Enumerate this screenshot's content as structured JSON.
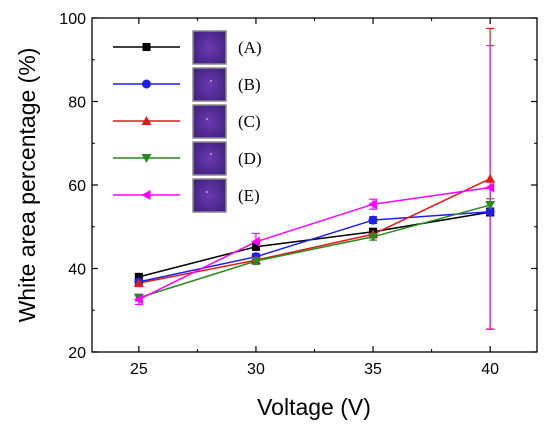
{
  "chart_data": {
    "type": "line",
    "title": "",
    "xlabel": "Voltage (V)",
    "ylabel": "White area percentage (%)",
    "x": [
      25,
      30,
      35,
      40
    ],
    "xlim": [
      23,
      42
    ],
    "ylim": [
      20,
      100
    ],
    "x_ticks": [
      "25",
      "30",
      "35",
      "40"
    ],
    "y_ticks": [
      "20",
      "40",
      "60",
      "80",
      "100"
    ],
    "grid": false,
    "legend_position": "top-left",
    "series": [
      {
        "name": "(A)",
        "color": "#000000",
        "marker": "square",
        "values": [
          38.0,
          45.2,
          48.8,
          53.5
        ],
        "error": [
          0.5,
          0.8,
          0.8,
          0.9
        ]
      },
      {
        "name": "(B)",
        "color": "#1f1fe6",
        "marker": "circle",
        "values": [
          36.8,
          42.8,
          51.6,
          53.6
        ],
        "error": [
          0.6,
          0.8,
          0.8,
          0.9
        ]
      },
      {
        "name": "(C)",
        "color": "#e41a1a",
        "marker": "triangle-up",
        "values": [
          36.5,
          42.0,
          48.2,
          61.5
        ],
        "error": [
          0.6,
          0.8,
          0.8,
          36.0
        ]
      },
      {
        "name": "(D)",
        "color": "#2a8a1f",
        "marker": "triangle-down",
        "values": [
          33.0,
          41.8,
          47.6,
          55.2
        ],
        "error": [
          0.8,
          0.8,
          0.8,
          1.5
        ]
      },
      {
        "name": "(E)",
        "color": "#ff00ff",
        "marker": "triangle-left",
        "values": [
          32.6,
          46.4,
          55.4,
          59.4
        ],
        "error": [
          1.2,
          2.0,
          1.2,
          34.0
        ]
      }
    ]
  }
}
